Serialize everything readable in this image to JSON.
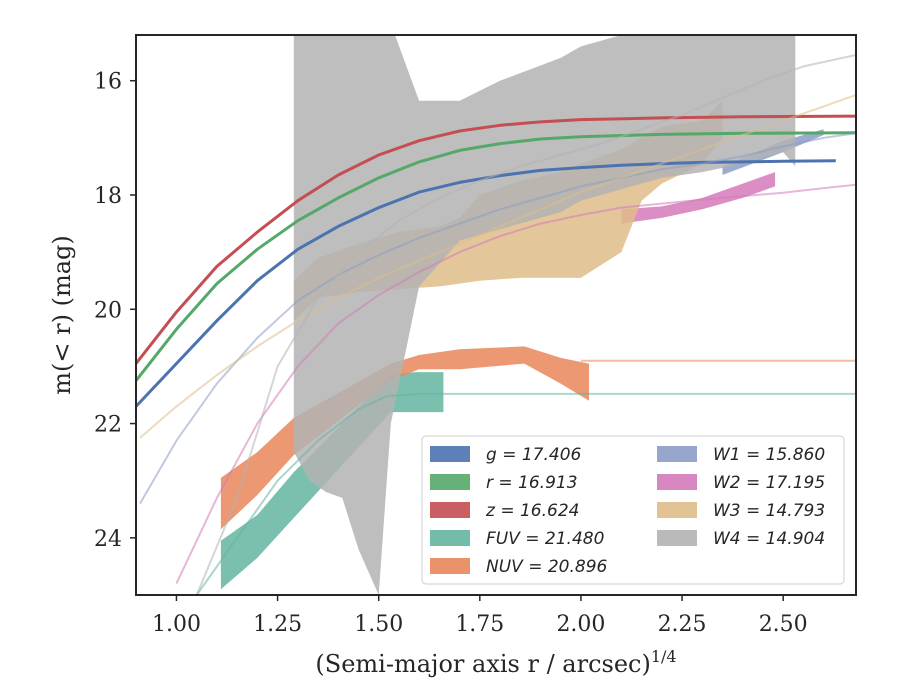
{
  "chart_data": {
    "type": "line",
    "xlabel": "(Semi-major axis r / arcsec)",
    "xlabel_exponent": "1/4",
    "ylabel": "m(< r) (mag)",
    "xlim": [
      0.9,
      2.68
    ],
    "ylim": [
      25.0,
      15.2
    ],
    "y_inverted": true,
    "x_ticks": [
      "1.00",
      "1.25",
      "1.50",
      "1.75",
      "2.00",
      "2.25",
      "2.50"
    ],
    "x_tick_values": [
      1.0,
      1.25,
      1.5,
      1.75,
      2.0,
      2.25,
      2.5
    ],
    "y_ticks": [
      "16",
      "18",
      "20",
      "22",
      "24"
    ],
    "y_tick_values": [
      16,
      18,
      20,
      22,
      24
    ],
    "grid": false,
    "legend_position": "lower-right",
    "series": [
      {
        "name": "g",
        "label": "g = 17.406",
        "color": "#4c72b0",
        "line": {
          "x": [
            0.9,
            1.0,
            1.1,
            1.2,
            1.3,
            1.4,
            1.5,
            1.6,
            1.7,
            1.8,
            1.9,
            2.0,
            2.1,
            2.2,
            2.3,
            2.4,
            2.5,
            2.63
          ],
          "y": [
            21.7,
            20.95,
            20.2,
            19.5,
            18.95,
            18.55,
            18.22,
            17.95,
            17.78,
            17.66,
            17.57,
            17.52,
            17.48,
            17.45,
            17.43,
            17.42,
            17.41,
            17.4
          ]
        },
        "band": null
      },
      {
        "name": "r",
        "label": "r = 16.913",
        "color": "#55a868",
        "line": {
          "x": [
            0.9,
            1.0,
            1.1,
            1.2,
            1.3,
            1.4,
            1.5,
            1.6,
            1.7,
            1.8,
            1.9,
            2.0,
            2.2,
            2.4,
            2.68
          ],
          "y": [
            21.25,
            20.35,
            19.55,
            18.95,
            18.45,
            18.05,
            17.7,
            17.42,
            17.22,
            17.1,
            17.02,
            16.98,
            16.94,
            16.92,
            16.91
          ]
        },
        "band": null
      },
      {
        "name": "z",
        "label": "z = 16.624",
        "color": "#c44e52",
        "line": {
          "x": [
            0.9,
            1.0,
            1.1,
            1.2,
            1.3,
            1.4,
            1.5,
            1.6,
            1.7,
            1.8,
            1.9,
            2.0,
            2.2,
            2.4,
            2.68
          ],
          "y": [
            20.95,
            20.05,
            19.25,
            18.65,
            18.1,
            17.65,
            17.3,
            17.05,
            16.88,
            16.78,
            16.72,
            16.68,
            16.65,
            16.63,
            16.62
          ]
        },
        "band": null
      },
      {
        "name": "FUV",
        "label": "FUV = 21.480",
        "color": "#64b5a0",
        "line": {
          "x": [
            1.05,
            1.15,
            1.25,
            1.35,
            1.45,
            1.52,
            1.6,
            1.8,
            2.0,
            2.3,
            2.68
          ],
          "y": [
            25.0,
            24.0,
            23.0,
            22.3,
            21.75,
            21.52,
            21.48,
            21.48,
            21.48,
            21.48,
            21.48
          ]
        },
        "band": {
          "x": [
            1.11,
            1.2,
            1.29,
            1.53,
            1.59,
            1.66
          ],
          "y_low": [
            24.9,
            24.35,
            23.65,
            21.8,
            21.8,
            21.8
          ],
          "y_high": [
            24.05,
            23.6,
            22.85,
            21.15,
            21.1,
            21.1
          ]
        }
      },
      {
        "name": "NUV",
        "label": "NUV = 20.896",
        "color": "#e8865a",
        "line": {
          "x": [
            2.0,
            2.2,
            2.4,
            2.68
          ],
          "y": [
            20.9,
            20.9,
            20.9,
            20.9
          ]
        },
        "band": {
          "x": [
            1.11,
            1.2,
            1.29,
            1.53,
            1.6,
            1.7,
            1.86,
            1.95,
            2.02
          ],
          "y_low": [
            23.85,
            23.25,
            22.55,
            21.25,
            21.05,
            21.05,
            20.95,
            21.3,
            21.6
          ],
          "y_high": [
            22.95,
            22.5,
            21.9,
            20.95,
            20.8,
            20.7,
            20.65,
            20.85,
            20.95
          ]
        }
      },
      {
        "name": "W1",
        "label": "W1 = 15.860",
        "color": "#8b9cc7",
        "line": {
          "x": [
            0.91,
            1.0,
            1.1,
            1.2,
            1.3,
            1.4,
            1.5,
            1.6,
            1.7,
            1.8,
            1.9,
            2.0,
            2.1,
            2.2,
            2.3,
            2.4,
            2.5,
            2.6,
            2.68
          ],
          "y": [
            23.4,
            22.3,
            21.3,
            20.5,
            19.85,
            19.4,
            19.05,
            18.75,
            18.5,
            18.25,
            18.05,
            17.85,
            17.7,
            17.55,
            17.45,
            17.32,
            17.15,
            17.0,
            16.92
          ]
        },
        "band": {
          "x": [
            2.35,
            2.5,
            2.6
          ],
          "y_low": [
            17.65,
            17.25,
            16.95
          ],
          "y_high": [
            17.5,
            17.05,
            16.85
          ]
        }
      },
      {
        "name": "W2",
        "label": "W2 = 17.195",
        "color": "#d37ab8",
        "line": {
          "x": [
            1.0,
            1.1,
            1.2,
            1.3,
            1.4,
            1.5,
            1.6,
            1.7,
            1.8,
            1.9,
            2.0,
            2.1,
            2.2,
            2.3,
            2.4,
            2.5,
            2.6,
            2.68
          ],
          "y": [
            24.8,
            23.3,
            22.0,
            21.0,
            20.25,
            19.75,
            19.35,
            19.0,
            18.72,
            18.5,
            18.35,
            18.22,
            18.15,
            18.08,
            18.02,
            17.96,
            17.88,
            17.82
          ]
        },
        "band": {
          "x": [
            2.1,
            2.2,
            2.3,
            2.4,
            2.48
          ],
          "y_low": [
            18.5,
            18.4,
            18.25,
            18.05,
            17.85
          ],
          "y_high": [
            18.25,
            18.2,
            18.05,
            17.8,
            17.6
          ]
        }
      },
      {
        "name": "W3",
        "label": "W3 = 14.793",
        "color": "#dfbc8a",
        "line": {
          "x": [
            0.91,
            1.0,
            1.1,
            1.2,
            1.3,
            1.4,
            1.5,
            1.6,
            1.7,
            1.8,
            1.9,
            2.0,
            2.1,
            2.2,
            2.3,
            2.4,
            2.5,
            2.6,
            2.68
          ],
          "y": [
            22.25,
            21.7,
            21.15,
            20.65,
            20.2,
            19.8,
            19.45,
            19.15,
            18.85,
            18.55,
            18.25,
            17.95,
            17.7,
            17.45,
            17.2,
            16.95,
            16.7,
            16.45,
            16.25
          ]
        },
        "band": {
          "x": [
            1.29,
            1.35,
            1.45,
            1.55,
            1.65,
            1.7,
            1.75,
            1.85,
            1.95,
            2.0,
            2.1,
            2.15,
            2.2,
            2.3,
            2.35
          ],
          "y_low": [
            20.2,
            19.8,
            19.7,
            19.65,
            19.6,
            19.55,
            19.5,
            19.45,
            19.45,
            19.45,
            19.0,
            18.1,
            17.8,
            17.45,
            17.0
          ],
          "y_high": [
            19.5,
            19.1,
            18.85,
            18.65,
            18.55,
            18.4,
            18.0,
            17.75,
            17.6,
            17.45,
            17.2,
            17.0,
            16.8,
            16.7,
            16.35
          ]
        }
      },
      {
        "name": "W4",
        "label": "W4 = 14.904",
        "color": "#b3b3b3",
        "line": {
          "x": [
            1.05,
            1.15,
            1.25,
            1.35,
            1.45,
            1.55,
            1.65,
            1.75,
            1.85,
            1.95,
            2.05,
            2.15,
            2.25,
            2.35,
            2.45,
            2.55,
            2.68
          ],
          "y": [
            25.0,
            23.3,
            21.0,
            19.8,
            19.0,
            18.45,
            18.05,
            17.75,
            17.5,
            17.3,
            17.1,
            16.85,
            16.6,
            16.3,
            16.0,
            15.75,
            15.55
          ]
        },
        "band": {
          "x": [
            1.29,
            1.33,
            1.37,
            1.41,
            1.45,
            1.5,
            1.53,
            1.6,
            1.7,
            1.8,
            1.95,
            2.0,
            2.1,
            2.2,
            2.3,
            2.4,
            2.5,
            2.53
          ],
          "y_low": [
            22.5,
            23.0,
            23.2,
            23.3,
            24.2,
            25.0,
            22.0,
            19.6,
            18.8,
            18.6,
            18.3,
            18.1,
            17.9,
            17.7,
            17.6,
            17.45,
            17.25,
            17.5
          ],
          "y_high": [
            15.0,
            15.0,
            15.0,
            15.0,
            15.0,
            15.0,
            15.0,
            16.35,
            16.35,
            16.0,
            15.6,
            15.4,
            15.2,
            15.0,
            15.0,
            15.0,
            15.0,
            15.0
          ]
        }
      }
    ]
  }
}
